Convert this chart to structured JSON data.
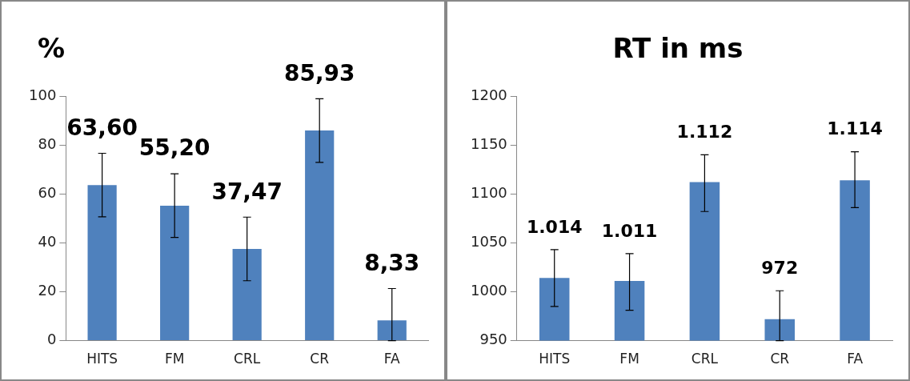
{
  "chart_data": [
    {
      "type": "bar",
      "title": "%",
      "categories": [
        "HITS",
        "FM",
        "CRL",
        "CR",
        "FA"
      ],
      "values": [
        63.6,
        55.2,
        37.47,
        85.93,
        8.33
      ],
      "value_labels": [
        "63,60",
        "55,20",
        "37,47",
        "85,93",
        "8,33"
      ],
      "errors": [
        [
          50.6,
          76.6
        ],
        [
          42.2,
          68.2
        ],
        [
          24.5,
          50.5
        ],
        [
          72.9,
          98.9
        ],
        [
          0,
          21.3
        ]
      ],
      "color": "#4f81bd",
      "ylim": [
        0,
        100
      ],
      "yticks": [
        0,
        20,
        40,
        60,
        80,
        100
      ],
      "grid": false,
      "legend": false
    },
    {
      "type": "bar",
      "title": "RT in ms",
      "categories": [
        "HITS",
        "FM",
        "CRL",
        "CR",
        "FA"
      ],
      "values": [
        1014,
        1011,
        1112,
        972,
        1114
      ],
      "value_labels": [
        "1.014",
        "1.011",
        "1.112",
        "972",
        "1.114"
      ],
      "errors": [
        [
          985,
          1043
        ],
        [
          981,
          1039
        ],
        [
          1082,
          1140
        ],
        [
          950,
          1001
        ],
        [
          1086,
          1143
        ]
      ],
      "color": "#4f81bd",
      "ylim": [
        950,
        1200
      ],
      "yticks": [
        950,
        1000,
        1050,
        1100,
        1150,
        1200
      ],
      "grid": false,
      "legend": false
    }
  ]
}
